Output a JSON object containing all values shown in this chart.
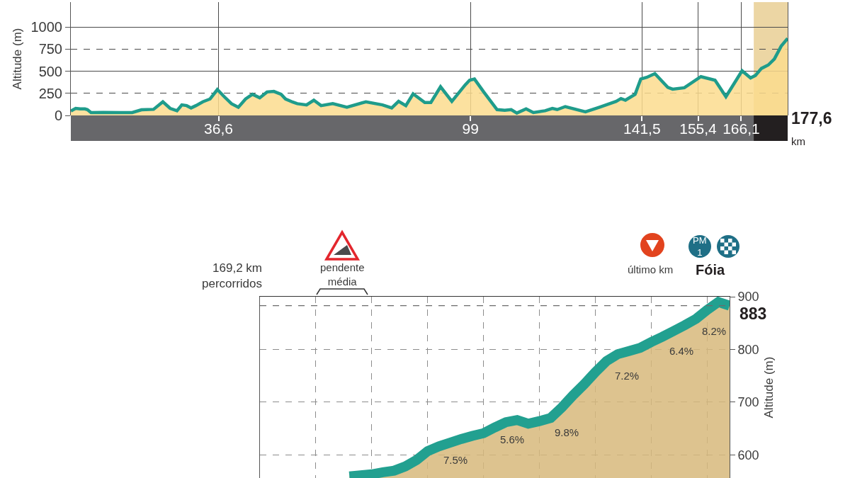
{
  "chart_data": [
    {
      "type": "area",
      "ylabel": "Altitude (m)",
      "grid": true,
      "x": [
        0,
        1.2,
        2.3,
        3.5,
        4.1,
        5.0,
        8,
        12,
        15.2,
        17.5,
        20.5,
        22.8,
        24.6,
        26.3,
        27.5,
        28.7,
        29.8,
        31.0,
        32.7,
        34.5,
        36.3,
        38.0,
        39.8,
        41.5,
        43.3,
        45.0,
        46.8,
        48.6,
        50.3,
        52.1,
        53.2,
        55.0,
        56.1,
        58.4,
        60.2,
        62.0,
        64.9,
        68.4,
        73.1,
        77.2,
        79.5,
        81.2,
        83.0,
        84.8,
        87.7,
        89.2,
        91.6,
        94.4,
        97.7,
        98.8,
        100.0,
        102.3,
        105.6,
        107.5,
        109.1,
        110.5,
        112.8,
        114.6,
        117.5,
        119.3,
        120.5,
        122.5,
        127.5,
        131.0,
        135.1,
        136.3,
        137.4,
        139.8,
        141.2,
        142.7,
        144.7,
        147.9,
        149.1,
        152.0,
        156.1,
        159.6,
        162.3,
        164.3,
        166.3,
        168.4,
        169.6,
        171.1,
        172.8,
        174.3,
        176.0,
        177.6
      ],
      "series": [
        {
          "color": "#fbdc8e",
          "values": [
            50,
            80,
            74,
            74,
            66,
            32,
            35,
            32,
            32,
            64,
            69,
            154,
            80,
            53,
            119,
            111,
            85,
            111,
            154,
            186,
            292,
            212,
            133,
            93,
            186,
            239,
            199,
            265,
            271,
            239,
            186,
            150,
            133,
            119,
            172,
            111,
            133,
            93,
            154,
            119,
            85,
            159,
            111,
            244,
            146,
            146,
            324,
            159,
            345,
            398,
            411,
            265,
            66,
            58,
            66,
            27,
            74,
            32,
            53,
            80,
            66,
            100,
            40,
            93,
            159,
            191,
            172,
            239,
            411,
            430,
            472,
            318,
            297,
            313,
            438,
            398,
            212,
            358,
            504,
            424,
            451,
            531,
            570,
            637,
            783,
            870
          ]
        },
        {
          "type": "line",
          "color": "#1f9c8b",
          "values": [
            50,
            80,
            74,
            74,
            66,
            32,
            35,
            32,
            32,
            64,
            69,
            154,
            80,
            53,
            119,
            111,
            85,
            111,
            154,
            186,
            292,
            212,
            133,
            93,
            186,
            239,
            199,
            265,
            271,
            239,
            186,
            150,
            133,
            119,
            172,
            111,
            133,
            93,
            154,
            119,
            85,
            159,
            111,
            244,
            146,
            146,
            324,
            159,
            345,
            398,
            411,
            265,
            66,
            58,
            66,
            27,
            74,
            32,
            53,
            80,
            66,
            100,
            40,
            93,
            159,
            191,
            172,
            239,
            411,
            430,
            472,
            318,
            297,
            313,
            438,
            398,
            212,
            358,
            504,
            424,
            451,
            531,
            570,
            637,
            783,
            870
          ]
        }
      ],
      "xlim": [
        0,
        177.6
      ],
      "xticks": [
        {
          "value": 36.6,
          "label": "36,6"
        },
        99,
        {
          "value": 141.5,
          "label": "141,5"
        },
        {
          "value": 155.4,
          "label": "155,4"
        },
        {
          "value": 166.1,
          "label": "166,1"
        }
      ],
      "ylim": [
        0,
        1280
      ],
      "yticks": [
        0,
        250,
        500,
        750,
        1000
      ],
      "bands": [
        {
          "axis": "x",
          "from": 169.2,
          "to": 177.6,
          "color": "#ecd6a4"
        }
      ],
      "annotations": [
        "177,6\nkm"
      ]
    },
    {
      "type": "area",
      "ylabel": "Altitude (m)",
      "grid": true,
      "categories": [
        null,
        null,
        null,
        null,
        null,
        null,
        null,
        null,
        null,
        null,
        null,
        null,
        null,
        null,
        null,
        null,
        null,
        null,
        null,
        null,
        null,
        null,
        null,
        null,
        null,
        null,
        null,
        null,
        null,
        null,
        null,
        null,
        null,
        null,
        null,
        null,
        null,
        null,
        null,
        null,
        null,
        null,
        null
      ],
      "series": [
        {
          "color": "#d7b97b",
          "values": [
            null,
            null,
            null,
            null,
            null,
            null,
            null,
            null,
            559,
            561,
            563,
            567,
            570,
            578,
            590,
            607,
            616,
            623,
            630,
            636,
            641,
            652,
            662,
            666,
            659,
            664,
            670,
            690,
            713,
            734,
            757,
            778,
            791,
            797,
            803,
            814,
            824,
            835,
            846,
            858,
            875,
            890,
            883
          ]
        },
        {
          "type": "line",
          "color": "#22a090",
          "values": [
            null,
            null,
            null,
            null,
            null,
            null,
            null,
            null,
            559,
            561,
            563,
            567,
            570,
            578,
            590,
            607,
            616,
            623,
            630,
            636,
            641,
            652,
            662,
            666,
            659,
            664,
            670,
            690,
            713,
            734,
            757,
            778,
            791,
            797,
            803,
            814,
            824,
            835,
            846,
            858,
            875,
            890,
            883
          ]
        }
      ],
      "ylim": [
        556,
        900
      ],
      "yticks": [
        600,
        700,
        800,
        900
      ],
      "ref_lines": [
        {
          "axis": "y",
          "value": 883,
          "label": "883",
          "line_style": "dashed"
        }
      ],
      "annotations": [
        "169,2 km\npercorridos",
        "pendente\nmédia",
        "último km",
        "PM\n1",
        "Fóia",
        "7.5%",
        "5.6%",
        "9.8%",
        "7.2%",
        "6.4%",
        "8.2%"
      ]
    }
  ]
}
